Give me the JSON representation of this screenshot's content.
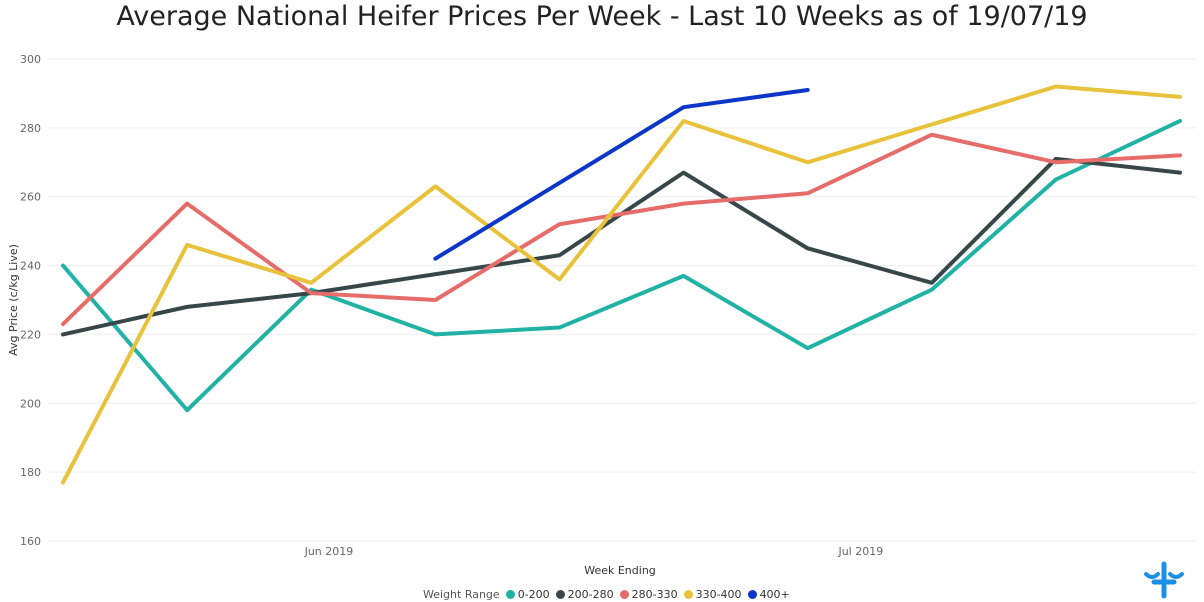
{
  "chart_data": {
    "type": "line",
    "title": "Average National Heifer Prices Per Week - Last 10 Weeks as of 19/07/19",
    "xlabel": "Week Ending",
    "ylabel": "Avg Price (c/kg Live)",
    "ylim": [
      160,
      300
    ],
    "yticks": [
      "160",
      "180",
      "200",
      "220",
      "240",
      "260",
      "280",
      "300"
    ],
    "x": [
      "2019-05-17",
      "2019-05-24",
      "2019-05-31",
      "2019-06-07",
      "2019-06-14",
      "2019-06-21",
      "2019-06-28",
      "2019-07-05",
      "2019-07-12",
      "2019-07-19"
    ],
    "xtick_labels": [
      {
        "label": "Jun 2019",
        "date": "2019-06-01"
      },
      {
        "label": "Jul 2019",
        "date": "2019-07-01"
      }
    ],
    "grid": true,
    "legend_title": "Weight Range",
    "legend_position": "bottom",
    "series": [
      {
        "name": "0-200",
        "color": "#21B2A6",
        "values": [
          240,
          198,
          233,
          220,
          222,
          237,
          216,
          233,
          265,
          282
        ]
      },
      {
        "name": "200-280",
        "color": "#374649",
        "values": [
          220,
          228,
          232,
          null,
          243,
          267,
          245,
          235,
          271,
          267
        ]
      },
      {
        "name": "280-330",
        "color": "#E66C6A",
        "values": [
          223,
          258,
          232,
          230,
          252,
          258,
          261,
          278,
          270,
          272
        ]
      },
      {
        "name": "330-400",
        "color": "#E8C23A",
        "values": [
          177,
          246,
          235,
          263,
          236,
          282,
          270,
          281,
          292,
          289
        ]
      },
      {
        "name": "400+",
        "color": "#0B36C8",
        "values": [
          null,
          null,
          null,
          242,
          null,
          286,
          291,
          null,
          null,
          null
        ]
      }
    ]
  },
  "logo": {
    "name": "brand-logo",
    "color": "#1B8FE3"
  }
}
